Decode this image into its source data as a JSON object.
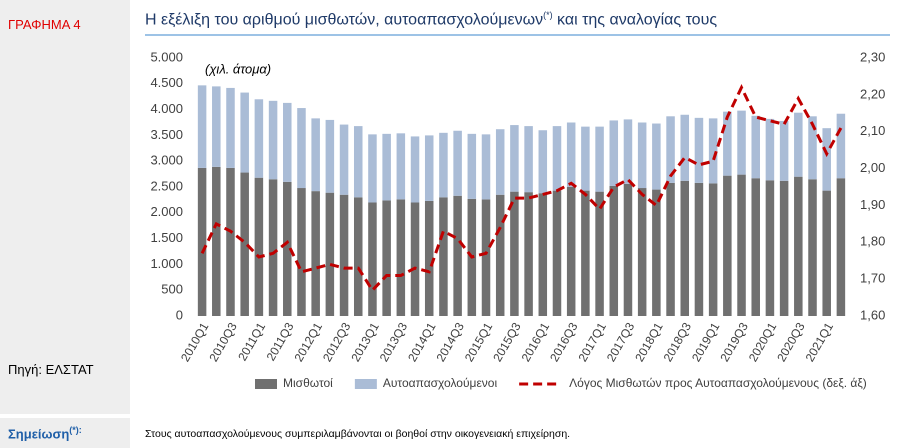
{
  "figure_label": "ΓΡΑΦΗΜΑ 4",
  "source": "Πηγή: ΕΛΣΤΑΤ",
  "note": {
    "label": "Σημείωση",
    "label_sup": "(*):",
    "text": "Στους αυτοαπασχολούμενους συμπεριλαμβάνονται οι βοηθοί στην οικογενειακή επιχείρηση."
  },
  "chart_data": {
    "type": "bar",
    "stacked": true,
    "title": {
      "main": "Η εξέλιξη του αριθμού μισθωτών, αυτοαπασχολούμενων",
      "sup": "(*)",
      "end": " και της αναλογίας τους"
    },
    "y_unit_annotation": "(χιλ. άτομα)",
    "grid": false,
    "legend": "bottom",
    "categories": [
      "2010Q1",
      null,
      "2010Q3",
      null,
      "2011Q1",
      null,
      "2011Q3",
      null,
      "2012Q1",
      null,
      "2012Q3",
      null,
      "2013Q1",
      null,
      "2013Q3",
      null,
      "2014Q1",
      null,
      "2014Q3",
      null,
      "2015Q1",
      null,
      "2015Q3",
      null,
      "2016Q1",
      null,
      "2016Q3",
      null,
      "2017Q1",
      null,
      "2017Q3",
      null,
      "2018Q1",
      null,
      "2018Q3",
      null,
      "2019Q1",
      null,
      "2019Q3",
      null,
      "2020Q1",
      null,
      "2020Q3",
      null,
      "2021Q1",
      null
    ],
    "series": [
      {
        "name": "Μισθωτοί",
        "type": "bar",
        "color": "#707070",
        "values": [
          2870,
          2890,
          2870,
          2780,
          2680,
          2650,
          2600,
          2480,
          2420,
          2390,
          2350,
          2300,
          2200,
          2240,
          2260,
          2200,
          2230,
          2300,
          2330,
          2270,
          2260,
          2350,
          2410,
          2400,
          2380,
          2430,
          2500,
          2430,
          2410,
          2520,
          2560,
          2480,
          2450,
          2580,
          2620,
          2580,
          2570,
          2720,
          2740,
          2670,
          2630,
          2620,
          2700,
          2650,
          2430,
          2670
        ]
      },
      {
        "name": "Αυτοαπασχολούμενοι",
        "type": "bar",
        "color": "#aabcd6",
        "values": [
          1600,
          1560,
          1550,
          1550,
          1520,
          1520,
          1530,
          1550,
          1410,
          1410,
          1360,
          1380,
          1320,
          1290,
          1280,
          1280,
          1270,
          1250,
          1260,
          1260,
          1260,
          1270,
          1290,
          1280,
          1220,
          1250,
          1250,
          1240,
          1260,
          1270,
          1250,
          1270,
          1280,
          1290,
          1280,
          1260,
          1260,
          1240,
          1240,
          1210,
          1190,
          1160,
          1240,
          1220,
          1210,
          1250
        ]
      },
      {
        "name": "Λόγος Μισθωτών προς Αυτοαπασχολούμενους (δεξ. άξ)",
        "type": "line",
        "axis": "y2",
        "color": "#c00000",
        "dashed": true,
        "values": [
          1.77,
          1.85,
          1.83,
          1.8,
          1.76,
          1.77,
          1.8,
          1.72,
          1.73,
          1.74,
          1.73,
          1.73,
          1.67,
          1.71,
          1.71,
          1.73,
          1.72,
          1.83,
          1.81,
          1.76,
          1.77,
          1.84,
          1.92,
          1.92,
          1.93,
          1.94,
          1.96,
          1.93,
          1.89,
          1.95,
          1.97,
          1.93,
          1.9,
          1.98,
          2.03,
          2.01,
          2.02,
          2.14,
          2.22,
          2.14,
          2.13,
          2.12,
          2.19,
          2.12,
          2.04,
          2.11
        ]
      }
    ],
    "ylim": [
      0,
      5000
    ],
    "yticks": [
      0,
      {
        "value": 500,
        "label": "500"
      },
      {
        "value": 1000,
        "label": "1.000"
      },
      {
        "value": 1500,
        "label": "1.500"
      },
      {
        "value": 2000,
        "label": "2.000"
      },
      {
        "value": 2500,
        "label": "2.500"
      },
      {
        "value": 3000,
        "label": "3.000"
      },
      {
        "value": 3500,
        "label": "3.500"
      },
      {
        "value": 4000,
        "label": "4.000"
      },
      {
        "value": 4500,
        "label": "4.500"
      },
      {
        "value": 5000,
        "label": "5.000"
      }
    ],
    "y2lim": [
      1.6,
      2.3
    ],
    "y2ticks": [
      {
        "value": 1.6,
        "label": "1,60"
      },
      {
        "value": 1.7,
        "label": "1,70"
      },
      {
        "value": 1.8,
        "label": "1,80"
      },
      {
        "value": 1.9,
        "label": "1,90"
      },
      {
        "value": 2.0,
        "label": "2,00"
      },
      {
        "value": 2.1,
        "label": "2,10"
      },
      {
        "value": 2.2,
        "label": "2,20"
      },
      {
        "value": 2.3,
        "label": "2,30"
      }
    ]
  }
}
